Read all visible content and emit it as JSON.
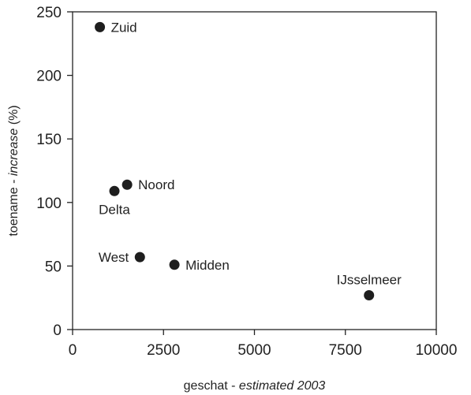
{
  "chart_data": {
    "type": "scatter",
    "title": "",
    "xlabel": {
      "prefix": "geschat - ",
      "italic": "estimated 2003"
    },
    "ylabel": {
      "prefix": "toename - ",
      "italic": "increase",
      "suffix": " (%)"
    },
    "xlim": [
      0,
      10000
    ],
    "ylim": [
      0,
      250
    ],
    "xticks": [
      0,
      2500,
      5000,
      7500,
      10000
    ],
    "yticks": [
      0,
      50,
      100,
      150,
      200,
      250
    ],
    "grid": false,
    "legend": "none",
    "points": [
      {
        "label": "Zuid",
        "x": 750,
        "y": 238,
        "label_pos": "right"
      },
      {
        "label": "Noord",
        "x": 1500,
        "y": 114,
        "label_pos": "right"
      },
      {
        "label": "Delta",
        "x": 1150,
        "y": 109,
        "label_pos": "below"
      },
      {
        "label": "West",
        "x": 1850,
        "y": 57,
        "label_pos": "left"
      },
      {
        "label": "Midden",
        "x": 2800,
        "y": 51,
        "label_pos": "right"
      },
      {
        "label": "IJsselmeer",
        "x": 8150,
        "y": 27,
        "label_pos": "above"
      }
    ],
    "point_color": "#1e1e1e"
  }
}
